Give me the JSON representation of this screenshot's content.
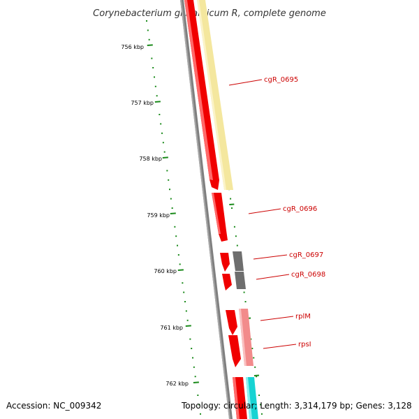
{
  "title": "Corynebacterium glutamicum R, complete genome",
  "footer": {
    "accession": "Accession: NC_009342",
    "topology": "Topology: circular; Length: 3,314,179 bp; Genes: 3,128"
  },
  "colors": {
    "backbone": "#808080",
    "ticks": "#1a8a1a",
    "label": "#cc0000",
    "forward_cds": "#ff0000",
    "yellow_track": "#f3e69c",
    "gray_cds": "#6e6e6e",
    "pink_cds": "#f08a8a",
    "cyan_cds": "#17d3d3"
  },
  "ticks": [
    "756 kbp",
    "757 kbp",
    "758 kbp",
    "759 kbp",
    "760 kbp",
    "761 kbp",
    "762 kbp"
  ],
  "genes": [
    {
      "name": "cgR_0695",
      "label": "cgR_0695"
    },
    {
      "name": "cgR_0696",
      "label": "cgR_0696"
    },
    {
      "name": "cgR_0697",
      "label": "cgR_0697"
    },
    {
      "name": "cgR_0698",
      "label": "cgR_0698"
    },
    {
      "name": "rplM",
      "label": "rplM"
    },
    {
      "name": "rpsI",
      "label": "rpsI"
    }
  ]
}
